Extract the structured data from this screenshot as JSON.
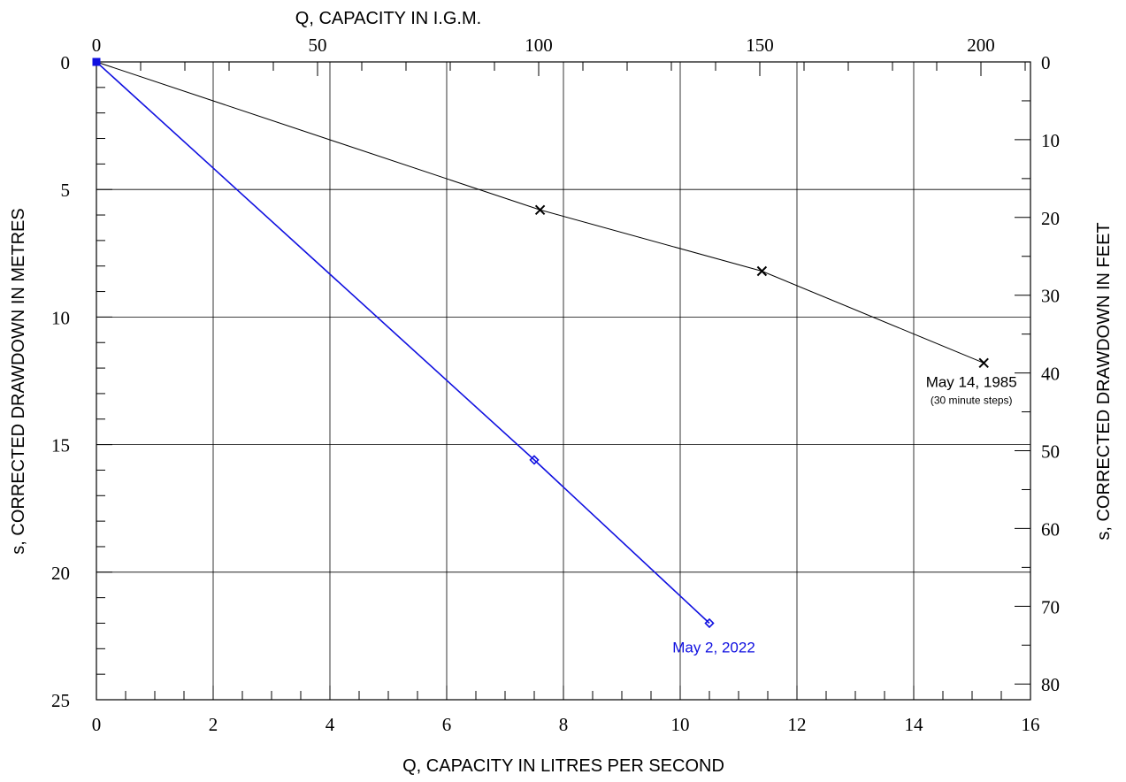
{
  "chart_data": {
    "type": "line",
    "x_top_label": "Q, CAPACITY IN  I.G.M.",
    "x_bottom_label": "Q, CAPACITY IN LITRES PER SECOND",
    "y_left_label": "s, CORRECTED DRAWDOWN IN METRES",
    "y_right_label": "s, CORRECTED DRAWDOWN IN FEET",
    "xlim": [
      0,
      16
    ],
    "ylim": [
      0,
      25
    ],
    "y_inverted": true,
    "x_bottom_ticks": [
      "0",
      "2",
      "4",
      "6",
      "8",
      "10",
      "12",
      "14",
      "16"
    ],
    "x_top_ticks": [
      "0",
      "50",
      "100",
      "150",
      "200"
    ],
    "y_left_ticks": [
      "0",
      "5",
      "10",
      "15",
      "20",
      "25"
    ],
    "y_right_ticks": [
      "0",
      "10",
      "20",
      "30",
      "40",
      "50",
      "60",
      "70",
      "80"
    ],
    "grid": true,
    "series": [
      {
        "name": "May 14, 1985",
        "note": "(30 minute steps)",
        "color": "#000000",
        "marker": "x",
        "points": [
          [
            0,
            0
          ],
          [
            7.6,
            5.8
          ],
          [
            11.4,
            8.2
          ],
          [
            15.2,
            11.8
          ]
        ]
      },
      {
        "name": "May 2, 2022",
        "color": "#1010e0",
        "marker": "diamond",
        "points": [
          [
            0,
            0
          ],
          [
            7.5,
            15.6
          ],
          [
            10.5,
            22.0
          ]
        ]
      }
    ]
  }
}
